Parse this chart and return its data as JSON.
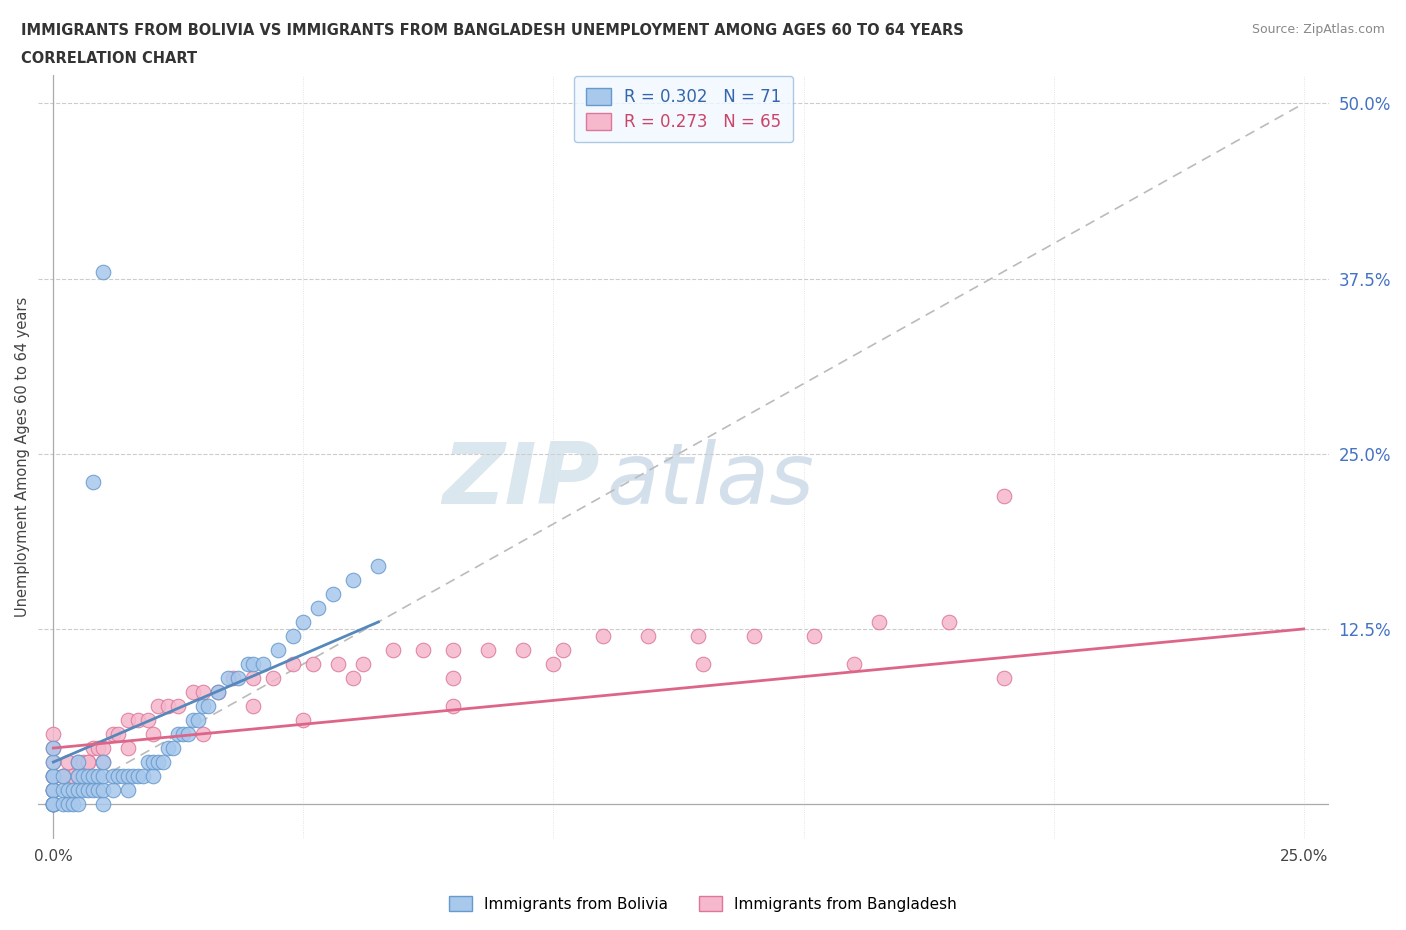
{
  "title_line1": "IMMIGRANTS FROM BOLIVIA VS IMMIGRANTS FROM BANGLADESH UNEMPLOYMENT AMONG AGES 60 TO 64 YEARS",
  "title_line2": "CORRELATION CHART",
  "source": "Source: ZipAtlas.com",
  "ylabel": "Unemployment Among Ages 60 to 64 years",
  "xlim": [
    -0.003,
    0.255
  ],
  "ylim": [
    -0.025,
    0.52
  ],
  "ytick_vals": [
    0.0,
    0.125,
    0.25,
    0.375,
    0.5
  ],
  "ytick_labs": [
    "",
    "12.5%",
    "25.0%",
    "37.5%",
    "50.0%"
  ],
  "xtick_vals": [
    0.0,
    0.05,
    0.1,
    0.15,
    0.2,
    0.25
  ],
  "xtick_labs": [
    "0.0%",
    "",
    "",
    "",
    "",
    "25.0%"
  ],
  "bolivia_color": "#a8c8ec",
  "bangladesh_color": "#f5b8cc",
  "bolivia_edge": "#6699cc",
  "bangladesh_edge": "#dd7799",
  "bolivia_line_color": "#5588bb",
  "bangladesh_line_color": "#dd6688",
  "bolivia_R": 0.302,
  "bolivia_N": 71,
  "bangladesh_R": 0.273,
  "bangladesh_N": 65,
  "ref_line_color": "#bbbbbb",
  "watermark_zip_color": "#c8d8ea",
  "watermark_atlas_color": "#b8cce0",
  "bolivia_x": [
    0.0,
    0.0,
    0.0,
    0.0,
    0.0,
    0.0,
    0.0,
    0.0,
    0.0,
    0.0,
    0.002,
    0.002,
    0.002,
    0.003,
    0.003,
    0.004,
    0.004,
    0.005,
    0.005,
    0.005,
    0.005,
    0.006,
    0.006,
    0.007,
    0.007,
    0.008,
    0.008,
    0.009,
    0.009,
    0.01,
    0.01,
    0.01,
    0.01,
    0.012,
    0.012,
    0.013,
    0.014,
    0.015,
    0.015,
    0.016,
    0.017,
    0.018,
    0.019,
    0.02,
    0.02,
    0.021,
    0.022,
    0.023,
    0.024,
    0.025,
    0.026,
    0.027,
    0.028,
    0.029,
    0.03,
    0.031,
    0.033,
    0.035,
    0.037,
    0.039,
    0.04,
    0.042,
    0.045,
    0.048,
    0.05,
    0.053,
    0.056,
    0.06,
    0.065,
    0.01,
    0.008
  ],
  "bolivia_y": [
    0.0,
    0.0,
    0.0,
    0.01,
    0.01,
    0.0,
    0.02,
    0.02,
    0.03,
    0.04,
    0.0,
    0.01,
    0.02,
    0.0,
    0.01,
    0.0,
    0.01,
    0.0,
    0.01,
    0.02,
    0.03,
    0.01,
    0.02,
    0.01,
    0.02,
    0.01,
    0.02,
    0.01,
    0.02,
    0.0,
    0.01,
    0.02,
    0.03,
    0.01,
    0.02,
    0.02,
    0.02,
    0.01,
    0.02,
    0.02,
    0.02,
    0.02,
    0.03,
    0.02,
    0.03,
    0.03,
    0.03,
    0.04,
    0.04,
    0.05,
    0.05,
    0.05,
    0.06,
    0.06,
    0.07,
    0.07,
    0.08,
    0.09,
    0.09,
    0.1,
    0.1,
    0.1,
    0.11,
    0.12,
    0.13,
    0.14,
    0.15,
    0.16,
    0.17,
    0.38,
    0.23
  ],
  "bangladesh_x": [
    0.0,
    0.0,
    0.0,
    0.0,
    0.002,
    0.003,
    0.004,
    0.005,
    0.006,
    0.007,
    0.008,
    0.009,
    0.01,
    0.012,
    0.013,
    0.015,
    0.017,
    0.019,
    0.021,
    0.023,
    0.025,
    0.028,
    0.03,
    0.033,
    0.036,
    0.04,
    0.044,
    0.048,
    0.052,
    0.057,
    0.062,
    0.068,
    0.074,
    0.08,
    0.087,
    0.094,
    0.102,
    0.11,
    0.119,
    0.129,
    0.14,
    0.152,
    0.165,
    0.179,
    0.19,
    0.0,
    0.005,
    0.01,
    0.02,
    0.04,
    0.06,
    0.08,
    0.1,
    0.13,
    0.16,
    0.08,
    0.05,
    0.03,
    0.015,
    0.007,
    0.002,
    0.0,
    0.0,
    0.0,
    0.19
  ],
  "bangladesh_y": [
    0.02,
    0.03,
    0.04,
    0.05,
    0.02,
    0.03,
    0.02,
    0.03,
    0.03,
    0.03,
    0.04,
    0.04,
    0.04,
    0.05,
    0.05,
    0.06,
    0.06,
    0.06,
    0.07,
    0.07,
    0.07,
    0.08,
    0.08,
    0.08,
    0.09,
    0.09,
    0.09,
    0.1,
    0.1,
    0.1,
    0.1,
    0.11,
    0.11,
    0.11,
    0.11,
    0.11,
    0.11,
    0.12,
    0.12,
    0.12,
    0.12,
    0.12,
    0.13,
    0.13,
    0.22,
    0.01,
    0.02,
    0.03,
    0.05,
    0.07,
    0.09,
    0.09,
    0.1,
    0.1,
    0.1,
    0.07,
    0.06,
    0.05,
    0.04,
    0.03,
    0.02,
    0.0,
    0.01,
    0.02,
    0.09
  ]
}
